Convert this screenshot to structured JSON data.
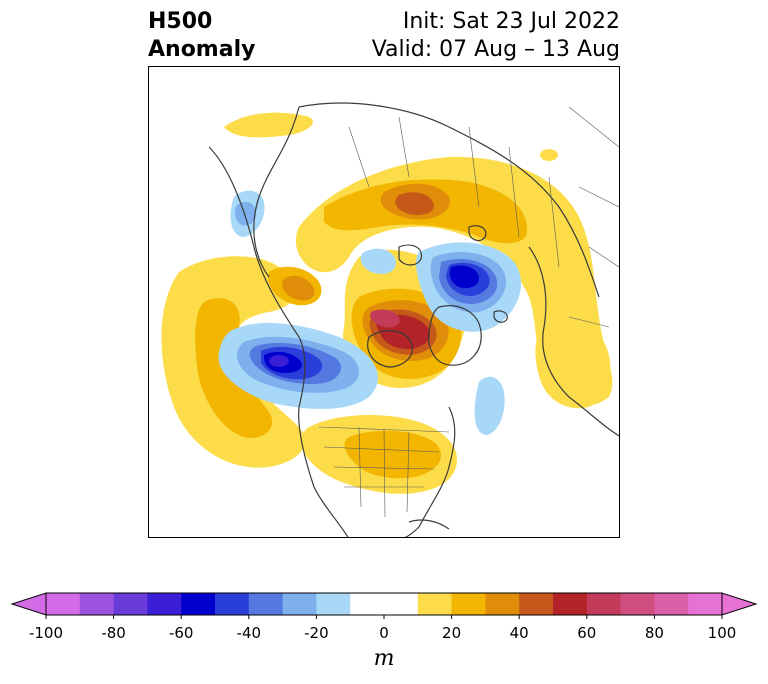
{
  "title": {
    "line1": "H500",
    "line2": "Anomaly",
    "init": "Init: Sat 23 Jul 2022",
    "valid": "Valid: 07 Aug – 13 Aug"
  },
  "colorbar": {
    "unit": "m",
    "ticks": [
      "-100",
      "-80",
      "-60",
      "-40",
      "-20",
      "0",
      "20",
      "40",
      "60",
      "80",
      "100"
    ],
    "min": -100,
    "max": 100,
    "step": 10,
    "extend": "both",
    "colors": [
      "#d36be6",
      "#9f52e1",
      "#6a3ada",
      "#3b1fd7",
      "#0000cc",
      "#2a3fd9",
      "#5479e0",
      "#7fb0ee",
      "#a8d8f8",
      "#ffffff",
      "#ffffff",
      "#fddc4a",
      "#f2b600",
      "#e08d0a",
      "#c6581a",
      "#b3242a",
      "#c23b59",
      "#d04e80",
      "#da5fa6",
      "#e672d6"
    ],
    "extend_low_color": "#d36be6",
    "extend_high_color": "#e672d6"
  }
}
